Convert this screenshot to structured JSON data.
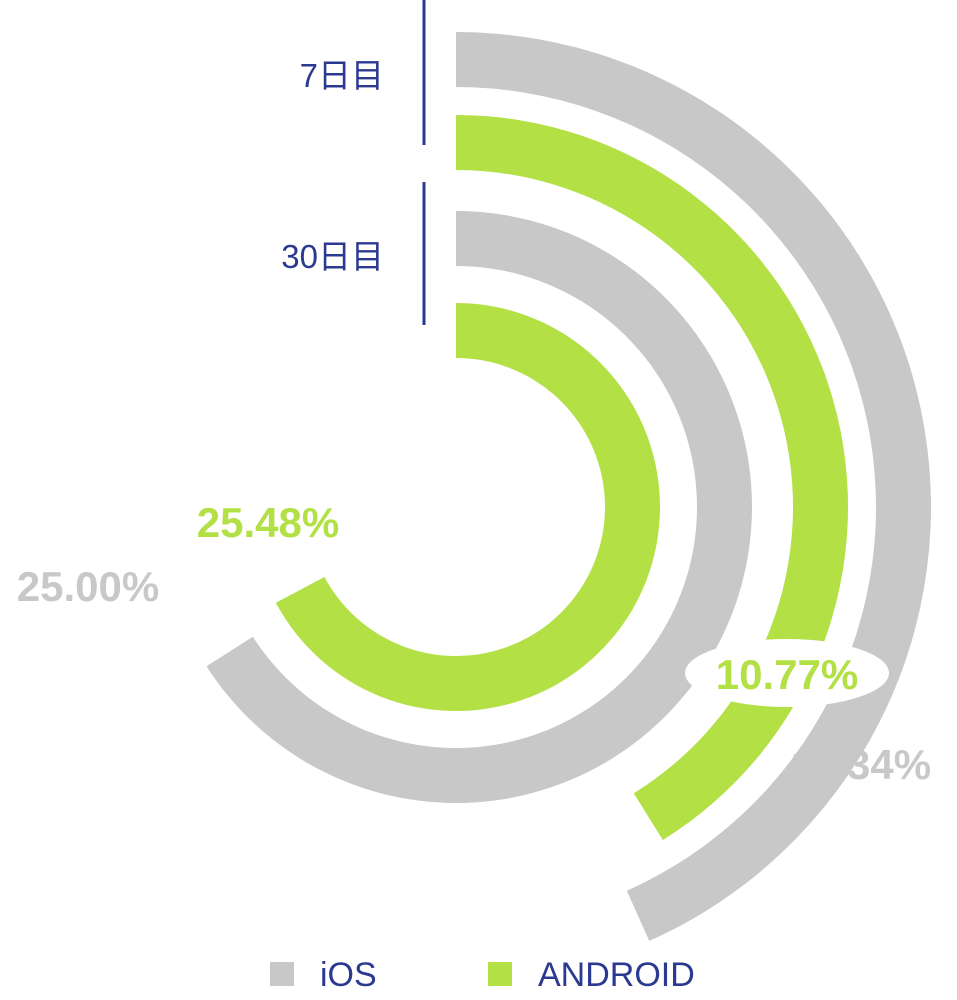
{
  "chart_data": {
    "type": "radial_bar",
    "groups": [
      {
        "label": "7日目",
        "values": {
          "iOS": 11.34,
          "ANDROID": 10.77
        }
      },
      {
        "label": "30日目",
        "values": {
          "iOS": 25.0,
          "ANDROID": 25.48
        }
      }
    ],
    "series": [
      {
        "name": "iOS",
        "color": "#c8c8c8"
      },
      {
        "name": "ANDROID",
        "color": "#b2e045"
      }
    ],
    "value_labels": {
      "7日目": {
        "iOS": "11.34%",
        "ANDROID": "10.77%"
      },
      "30日目": {
        "iOS": "25.00%",
        "ANDROID": "25.48%"
      }
    },
    "label_color": "#2b3990",
    "legend_position": "bottom"
  }
}
